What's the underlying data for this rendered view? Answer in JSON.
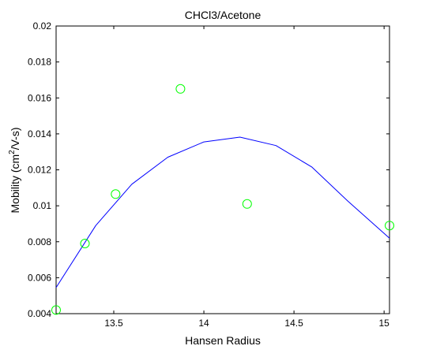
{
  "chart_data": {
    "type": "scatter",
    "title": "CHCl3/Acetone",
    "xlabel": "Hansen Radius",
    "ylabel": {
      "base": "Mobility (cm",
      "sup": "2",
      "rest": "/V-s)"
    },
    "xlim": [
      13.18,
      15.03
    ],
    "ylim": [
      0.004,
      0.02
    ],
    "xticks": [
      13.5,
      14,
      14.5,
      15
    ],
    "xtick_labels": [
      "13.5",
      "14",
      "14.5",
      "15"
    ],
    "yticks": [
      0.004,
      0.006,
      0.008,
      0.01,
      0.012,
      0.014,
      0.016,
      0.018,
      0.02
    ],
    "ytick_labels": [
      "0.004",
      "0.006",
      "0.008",
      "0.01",
      "0.012",
      "0.014",
      "0.016",
      "0.018",
      "0.02"
    ],
    "grid": false,
    "series": [
      {
        "type": "scatter",
        "marker": "open-circle",
        "color": "#00ff00",
        "points": [
          {
            "x": 13.18,
            "y": 0.0042
          },
          {
            "x": 13.34,
            "y": 0.0079
          },
          {
            "x": 13.51,
            "y": 0.01065
          },
          {
            "x": 13.87,
            "y": 0.0165
          },
          {
            "x": 14.24,
            "y": 0.0101
          },
          {
            "x": 15.03,
            "y": 0.0089
          }
        ]
      },
      {
        "type": "line",
        "color": "#0000ff",
        "fit": "quadratic",
        "points": [
          {
            "x": 13.18,
            "y": 0.00545
          },
          {
            "x": 13.4,
            "y": 0.0089
          },
          {
            "x": 13.6,
            "y": 0.0112
          },
          {
            "x": 13.8,
            "y": 0.0127
          },
          {
            "x": 14.0,
            "y": 0.01355
          },
          {
            "x": 14.2,
            "y": 0.01382
          },
          {
            "x": 14.4,
            "y": 0.01335
          },
          {
            "x": 14.6,
            "y": 0.01215
          },
          {
            "x": 14.8,
            "y": 0.01025
          },
          {
            "x": 15.03,
            "y": 0.0082
          }
        ]
      }
    ]
  }
}
